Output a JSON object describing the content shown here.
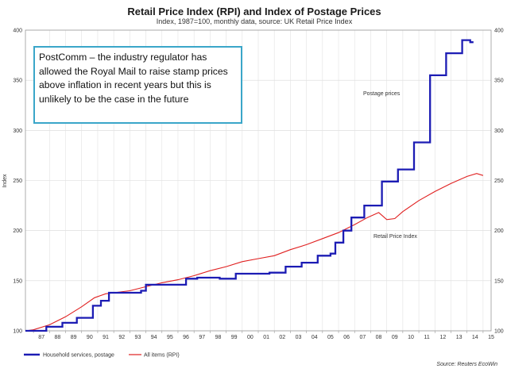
{
  "chart_data": {
    "type": "line",
    "title": "Retail Price Index (RPI) and Index of Postage Prices",
    "subtitle": "Index, 1987=100, monthly data, source: UK Retail Price Index",
    "ylabel": "Index",
    "ylim": [
      100,
      400
    ],
    "yticks": [
      "100",
      "150",
      "200",
      "250",
      "300",
      "350",
      "400"
    ],
    "xlim": [
      1986.5,
      2015.5
    ],
    "xticks": [
      "87",
      "88",
      "89",
      "90",
      "91",
      "92",
      "93",
      "94",
      "95",
      "96",
      "97",
      "98",
      "99",
      "00",
      "01",
      "02",
      "03",
      "04",
      "05",
      "06",
      "07",
      "08",
      "09",
      "10",
      "11",
      "12",
      "13",
      "14",
      "15"
    ],
    "grid": true,
    "series": [
      {
        "name": "Household services, postage",
        "color": "#1c1cb4",
        "style": "step",
        "points": [
          [
            1986.5,
            100
          ],
          [
            1987.8,
            100
          ],
          [
            1987.8,
            104
          ],
          [
            1988.8,
            104
          ],
          [
            1988.8,
            108
          ],
          [
            1989.7,
            108
          ],
          [
            1989.7,
            113
          ],
          [
            1990.7,
            113
          ],
          [
            1990.7,
            125
          ],
          [
            1991.2,
            125
          ],
          [
            1991.2,
            130
          ],
          [
            1991.7,
            130
          ],
          [
            1991.7,
            138
          ],
          [
            1993.7,
            138
          ],
          [
            1993.7,
            140
          ],
          [
            1994.0,
            140
          ],
          [
            1994.0,
            146
          ],
          [
            1996.5,
            146
          ],
          [
            1996.5,
            152
          ],
          [
            1997.2,
            152
          ],
          [
            1997.2,
            153
          ],
          [
            1998.6,
            153
          ],
          [
            1998.6,
            152
          ],
          [
            1999.6,
            152
          ],
          [
            1999.6,
            157
          ],
          [
            2001.7,
            157
          ],
          [
            2001.7,
            158
          ],
          [
            2002.7,
            158
          ],
          [
            2002.7,
            164
          ],
          [
            2003.7,
            164
          ],
          [
            2003.7,
            168
          ],
          [
            2004.7,
            168
          ],
          [
            2004.7,
            175
          ],
          [
            2005.5,
            175
          ],
          [
            2005.5,
            177
          ],
          [
            2005.8,
            177
          ],
          [
            2005.8,
            188
          ],
          [
            2006.3,
            188
          ],
          [
            2006.3,
            200
          ],
          [
            2006.8,
            200
          ],
          [
            2006.8,
            213
          ],
          [
            2007.6,
            213
          ],
          [
            2007.6,
            225
          ],
          [
            2008.7,
            225
          ],
          [
            2008.7,
            249
          ],
          [
            2009.7,
            249
          ],
          [
            2009.7,
            261
          ],
          [
            2010.7,
            261
          ],
          [
            2010.7,
            288
          ],
          [
            2011.7,
            288
          ],
          [
            2011.7,
            355
          ],
          [
            2012.7,
            355
          ],
          [
            2012.7,
            377
          ],
          [
            2013.7,
            377
          ],
          [
            2013.7,
            390
          ],
          [
            2014.2,
            390
          ],
          [
            2014.2,
            388
          ],
          [
            2014.4,
            388
          ]
        ]
      },
      {
        "name": "All items (RPI)",
        "color": "#e02020",
        "style": "line",
        "points": [
          [
            1986.5,
            100
          ],
          [
            1987.0,
            101
          ],
          [
            1988.0,
            106
          ],
          [
            1989.0,
            114
          ],
          [
            1990.0,
            124
          ],
          [
            1990.8,
            133
          ],
          [
            1991.5,
            137
          ],
          [
            1992.0,
            138
          ],
          [
            1993.0,
            140
          ],
          [
            1994.0,
            144
          ],
          [
            1995.0,
            148
          ],
          [
            1996.0,
            151
          ],
          [
            1997.0,
            155
          ],
          [
            1998.0,
            160
          ],
          [
            1999.0,
            164
          ],
          [
            2000.0,
            169
          ],
          [
            2001.0,
            172
          ],
          [
            2002.0,
            175
          ],
          [
            2003.0,
            181
          ],
          [
            2004.0,
            186
          ],
          [
            2005.0,
            192
          ],
          [
            2006.0,
            198
          ],
          [
            2007.0,
            206
          ],
          [
            2007.8,
            213
          ],
          [
            2008.5,
            218
          ],
          [
            2009.0,
            211
          ],
          [
            2009.5,
            212
          ],
          [
            2010.0,
            219
          ],
          [
            2011.0,
            230
          ],
          [
            2012.0,
            239
          ],
          [
            2013.0,
            247
          ],
          [
            2014.0,
            254
          ],
          [
            2014.6,
            257
          ],
          [
            2015.0,
            255
          ]
        ]
      }
    ],
    "annotations": [
      {
        "text": "Postage prices",
        "x": 2008.6,
        "y": 338
      },
      {
        "text": "Retail Price Index",
        "x": 2008.2,
        "y": 196
      }
    ],
    "legend": {
      "placement": "bottom-left",
      "entries": [
        "Household services, postage",
        "All items (RPI)"
      ]
    },
    "source": "Source: Reuters EcoWin"
  },
  "callout": {
    "text": "PostComm – the industry regulator has allowed the Royal Mail to raise stamp prices above inflation in recent years but this is unlikely to be the case in the future"
  }
}
